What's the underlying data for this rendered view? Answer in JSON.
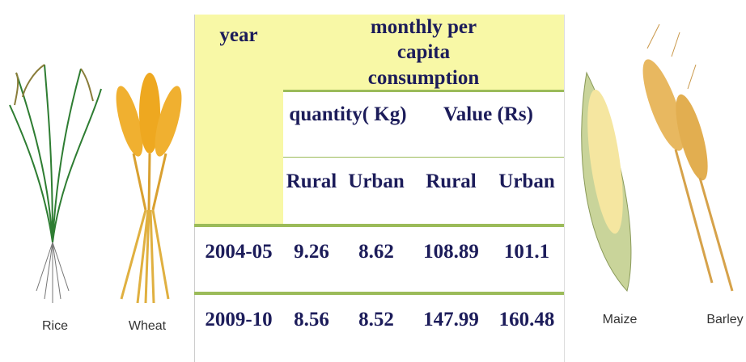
{
  "images": [
    "Rice",
    "Wheat",
    "Maize",
    "Barley"
  ],
  "table": {
    "year_header": "year",
    "group_header": "monthly per capita consumption",
    "subgroups": [
      "quantity( Kg)",
      "Value (Rs)"
    ],
    "columns": [
      "Rural",
      "Urban",
      "Rural",
      "Urban"
    ],
    "rows": [
      [
        "2004-05",
        9.26,
        8.62,
        108.89,
        101.1
      ],
      [
        "2009-10",
        8.56,
        8.52,
        147.99,
        160.48
      ]
    ]
  }
}
